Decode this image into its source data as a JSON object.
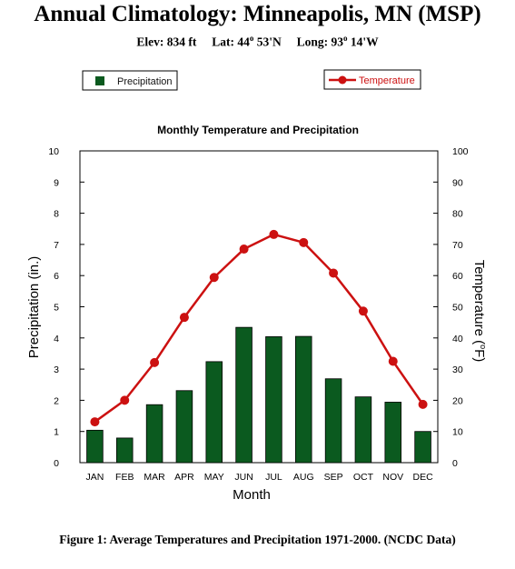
{
  "header": {
    "title": "Annual Climatology: Minneapolis, MN (MSP)",
    "elev_label": "Elev:",
    "elev_value": "834 ft",
    "lat_label": "Lat:",
    "lat_deg": "44",
    "lat_deg_mark": "o",
    "lat_min": "53'N",
    "long_label": "Long:",
    "long_deg": "93",
    "long_deg_mark": "o",
    "long_min": "14'W"
  },
  "caption": "Figure 1: Average Temperatures and Precipitation 1971-2000. (NCDC Data)",
  "colors": {
    "precip_bar": "#0b5a1f",
    "temp_line": "#cc1111",
    "axis": "#000000"
  },
  "chart_data": {
    "type": "bar",
    "title": "Monthly Temperature and Precipitation",
    "xlabel": "Month",
    "ylabel_left": "Precipitation (in.)",
    "ylabel_right_prefix": "Temperature (",
    "ylabel_right_deg": "o",
    "ylabel_right_suffix": "F)",
    "categories": [
      "JAN",
      "FEB",
      "MAR",
      "APR",
      "MAY",
      "JUN",
      "JUL",
      "AUG",
      "SEP",
      "OCT",
      "NOV",
      "DEC"
    ],
    "ylim_left": [
      0,
      10
    ],
    "ylim_right": [
      0,
      100
    ],
    "yticks_left": [
      "0",
      "1",
      "2",
      "3",
      "4",
      "5",
      "6",
      "7",
      "8",
      "9",
      "10"
    ],
    "yticks_right": [
      "0",
      "10",
      "20",
      "30",
      "40",
      "50",
      "60",
      "70",
      "80",
      "90",
      "100"
    ],
    "grid": false,
    "legend_placement": "top",
    "series": [
      {
        "name": "Precipitation",
        "type": "bar",
        "axis": "left",
        "values": [
          1.04,
          0.79,
          1.86,
          2.31,
          3.24,
          4.34,
          4.04,
          4.05,
          2.69,
          2.11,
          1.94,
          1.0
        ]
      },
      {
        "name": "Temperature",
        "type": "line",
        "axis": "right",
        "values": [
          13.1,
          20.0,
          32.1,
          46.6,
          59.4,
          68.5,
          73.2,
          70.6,
          60.8,
          48.6,
          32.5,
          18.7
        ]
      }
    ]
  }
}
